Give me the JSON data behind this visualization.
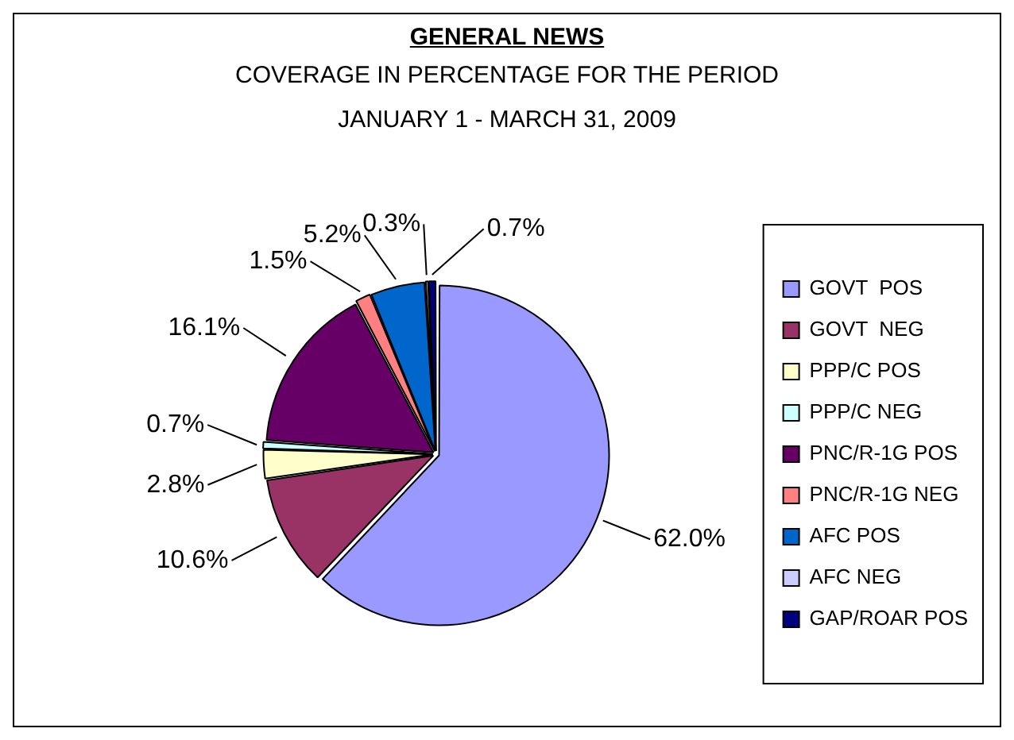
{
  "chart_data": {
    "type": "pie",
    "title": "GENERAL NEWS",
    "subtitle": "COVERAGE IN PERCENTAGE FOR THE PERIOD\nJANUARY 1 - MARCH 31, 2009",
    "categories": [
      "GOVT  POS",
      "GOVT  NEG",
      "PPP/C POS",
      "PPP/C NEG",
      "PNC/R-1G POS",
      "PNC/R-1G NEG",
      "AFC POS",
      "AFC NEG",
      "GAP/ROAR POS"
    ],
    "values": [
      62.0,
      10.6,
      2.8,
      0.7,
      16.1,
      1.5,
      5.2,
      0.3,
      0.7
    ],
    "colors": [
      "#9999ff",
      "#993366",
      "#ffffcc",
      "#ccffff",
      "#660066",
      "#ff8080",
      "#0066cc",
      "#ccccff",
      "#000080"
    ],
    "value_labels": [
      "62.0%",
      "10.6%",
      "2.8%",
      "0.7%",
      "16.1%",
      "1.5%",
      "5.2%",
      "0.3%",
      "0.7%"
    ],
    "legend": "right"
  }
}
